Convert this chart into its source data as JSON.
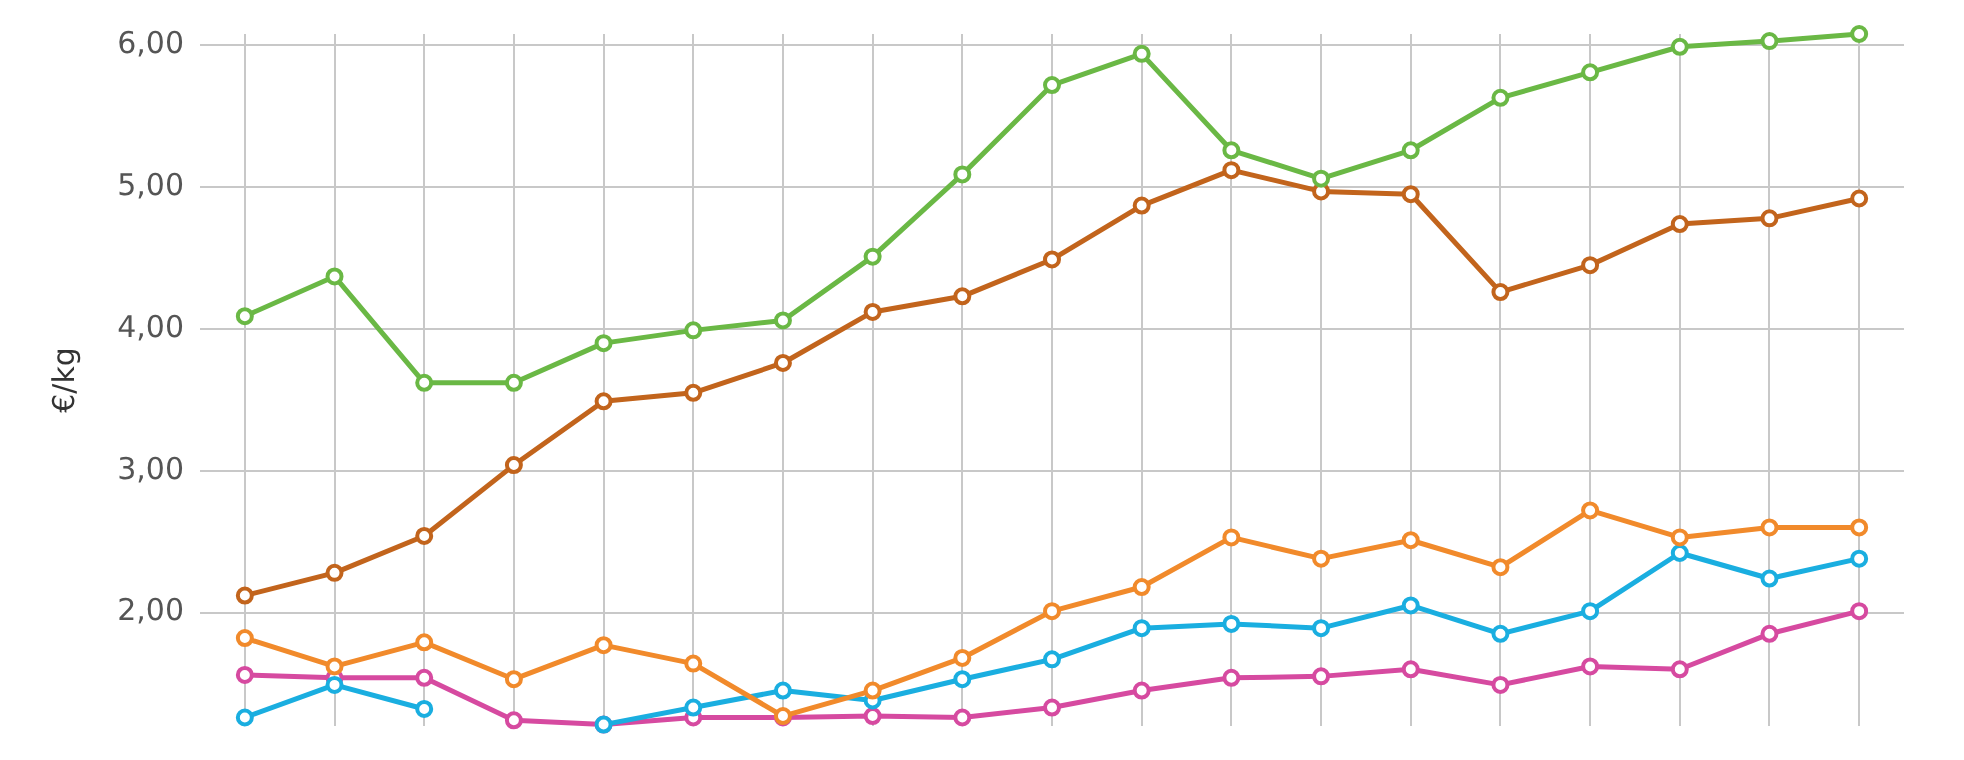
{
  "chart_data": {
    "type": "line",
    "ylabel": "€/kg",
    "categories": [
      null,
      null,
      null,
      null,
      null,
      null,
      null,
      null,
      null,
      null,
      null,
      null,
      null,
      null,
      null,
      null,
      null,
      null,
      null
    ],
    "ylim": [
      1.2,
      6.08
    ],
    "yticks": [
      {
        "value": 2,
        "label": "2,00"
      },
      {
        "value": 3,
        "label": "3,00"
      },
      {
        "value": 4,
        "label": "4,00"
      },
      {
        "value": 5,
        "label": "5,00"
      },
      {
        "value": 6,
        "label": "6,00"
      }
    ],
    "grid": true,
    "marker": "circle",
    "line_style": "solid",
    "tick_labels": "y",
    "series": [
      {
        "color": "#6ab845",
        "values": [
          4.09,
          4.37,
          3.62,
          3.62,
          3.9,
          3.99,
          4.06,
          4.51,
          5.09,
          5.72,
          5.94,
          5.26,
          5.06,
          5.26,
          5.63,
          5.81,
          5.99,
          6.03,
          6.08
        ]
      },
      {
        "color": "#c2641c",
        "values": [
          2.12,
          2.28,
          2.54,
          3.04,
          3.49,
          3.55,
          3.76,
          4.12,
          4.23,
          4.49,
          4.87,
          5.12,
          4.97,
          4.95,
          4.26,
          4.45,
          4.74,
          4.78,
          4.92
        ]
      },
      {
        "color": "#f18a2b",
        "values": [
          1.82,
          1.62,
          1.79,
          1.53,
          1.77,
          1.64,
          1.27,
          1.45,
          1.68,
          2.01,
          2.18,
          2.53,
          2.38,
          2.51,
          2.32,
          2.72,
          2.53,
          2.6,
          2.6
        ]
      },
      {
        "color": "#1aaee0",
        "values": [
          1.26,
          1.49,
          1.32,
          null,
          1.21,
          1.33,
          1.45,
          1.38,
          1.53,
          1.67,
          1.89,
          1.92,
          1.89,
          2.05,
          1.85,
          2.01,
          2.42,
          2.24,
          2.38
        ]
      },
      {
        "color": "#d64aa0",
        "values": [
          1.56,
          1.54,
          1.54,
          1.24,
          1.21,
          1.26,
          1.26,
          1.27,
          1.26,
          1.33,
          1.45,
          1.54,
          1.55,
          1.6,
          1.49,
          1.62,
          1.6,
          1.85,
          2.01
        ]
      }
    ]
  }
}
